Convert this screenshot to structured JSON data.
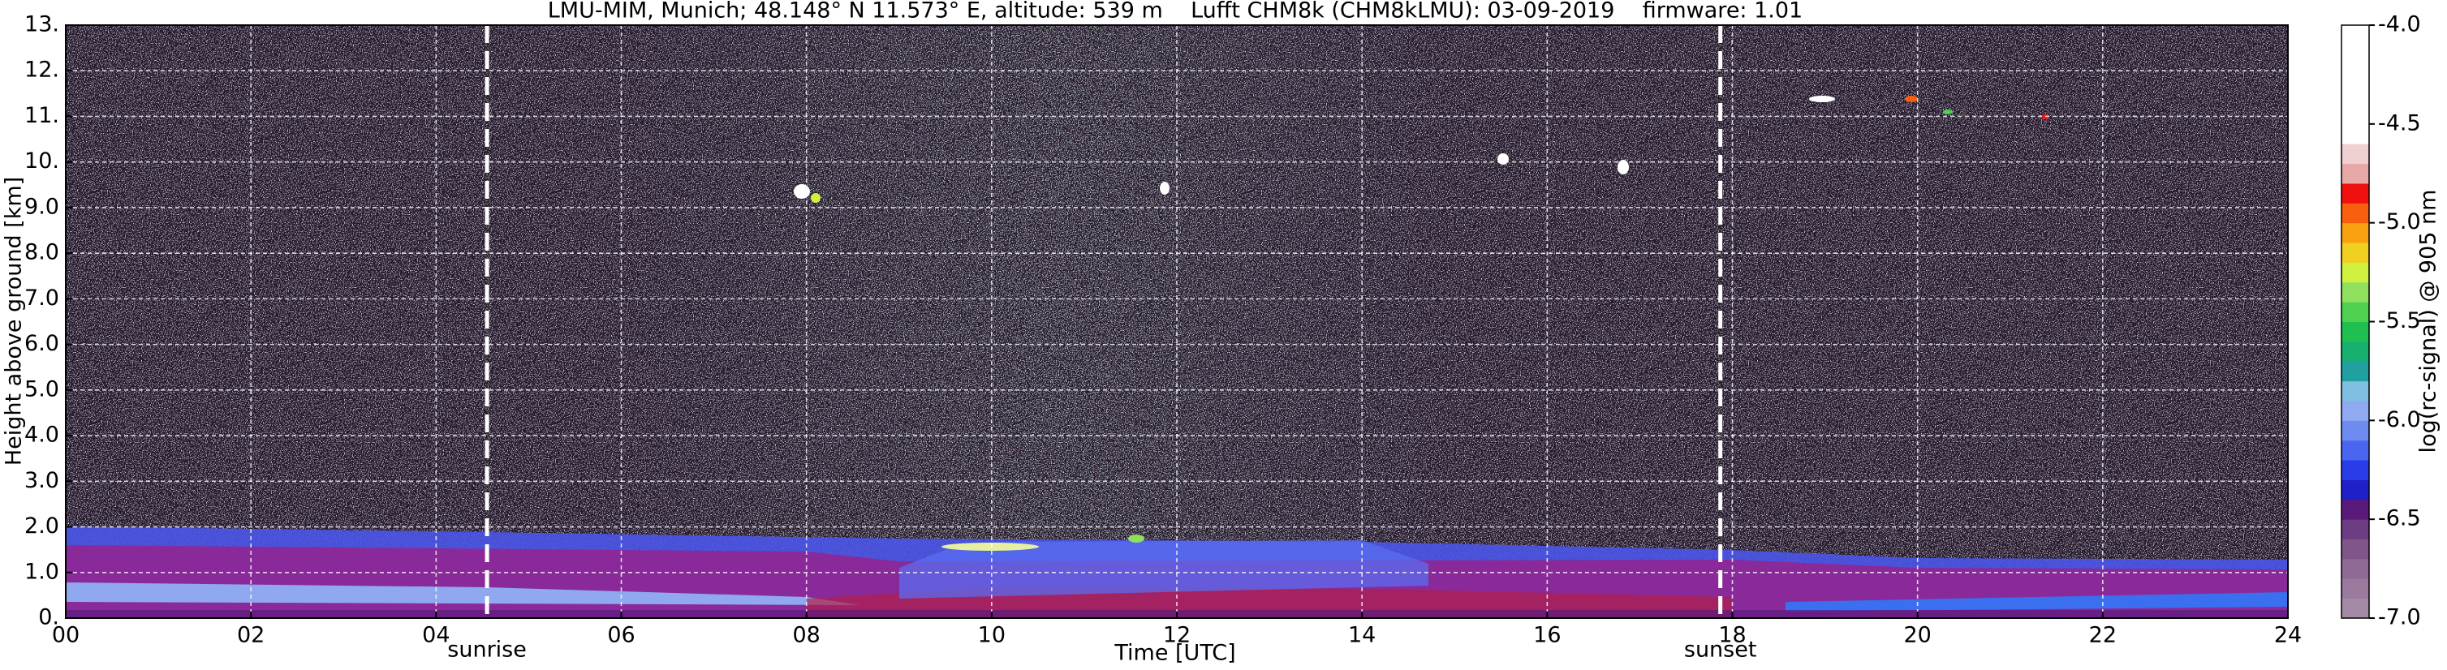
{
  "chart_data": {
    "type": "heatmap",
    "title": "LMU-MIM, Munich; 48.148° N 11.573° E, altitude: 539 m    Lufft CHM8k (CHM8kLMU): 03-09-2019    firmware: 1.01",
    "x_label": "Time [UTC]",
    "y_label": "Height above ground [km]",
    "xlim": [
      0,
      24
    ],
    "xticks": [
      {
        "value": 0,
        "label": "00"
      },
      {
        "value": 2,
        "label": "02"
      },
      {
        "value": 4,
        "label": "04"
      },
      {
        "value": 6,
        "label": "06"
      },
      {
        "value": 8,
        "label": "08"
      },
      10,
      12,
      14,
      16,
      18,
      20,
      22,
      24
    ],
    "ylim": [
      0,
      13
    ],
    "yticks": [
      {
        "value": 0,
        "label": "0."
      },
      {
        "value": 1,
        "label": "1.0"
      },
      {
        "value": 2,
        "label": "2.0"
      },
      {
        "value": 3,
        "label": "3.0"
      },
      {
        "value": 4,
        "label": "4.0"
      },
      {
        "value": 5,
        "label": "5.0"
      },
      {
        "value": 6,
        "label": "6.0"
      },
      {
        "value": 7,
        "label": "7.0"
      },
      {
        "value": 8,
        "label": "8.0"
      },
      {
        "value": 9,
        "label": "9.0"
      },
      {
        "value": 10,
        "label": "10."
      },
      {
        "value": 11,
        "label": "11."
      },
      {
        "value": 12,
        "label": "12."
      },
      {
        "value": 13,
        "label": "13."
      }
    ],
    "grid": true,
    "events": [
      {
        "label": "sunrise",
        "time": 4.55
      },
      {
        "label": "sunset",
        "time": 17.87
      }
    ],
    "colorbar": {
      "label": "log(rc-signal) @ 905 nm",
      "lim": [
        -7,
        -4
      ],
      "ticks": [
        {
          "value": -4,
          "label": "-4.0"
        },
        -4.5,
        {
          "value": -5,
          "label": "-5.0"
        },
        -5.5,
        {
          "value": -6,
          "label": "-6.0"
        },
        -6.5,
        {
          "value": -7,
          "label": "-7.0"
        }
      ],
      "bounds": [
        -7.0,
        -6.9,
        -6.8,
        -6.7,
        -6.6,
        -6.5,
        -6.4,
        -6.3,
        -6.2,
        -6.1,
        -6.0,
        -5.9,
        -5.8,
        -5.7,
        -5.6,
        -5.5,
        -5.4,
        -5.3,
        -5.2,
        -5.1,
        -5.0,
        -4.9,
        -4.8,
        -4.7,
        -4.6,
        -4.0
      ],
      "colors": [
        "#a58aa5",
        "#9a7a9c",
        "#8e6a94",
        "#80558a",
        "#6e3c82",
        "#5a1a7a",
        "#2020c8",
        "#2a3ce8",
        "#4a66f0",
        "#6e8cf0",
        "#90aaf2",
        "#7fc0e0",
        "#20a0a0",
        "#18b070",
        "#20c050",
        "#50d050",
        "#90e060",
        "#d0f040",
        "#f0d020",
        "#f8a010",
        "#f86010",
        "#f01010",
        "#e8a8a8",
        "#f0d0d0",
        "#ffffff"
      ]
    }
  }
}
